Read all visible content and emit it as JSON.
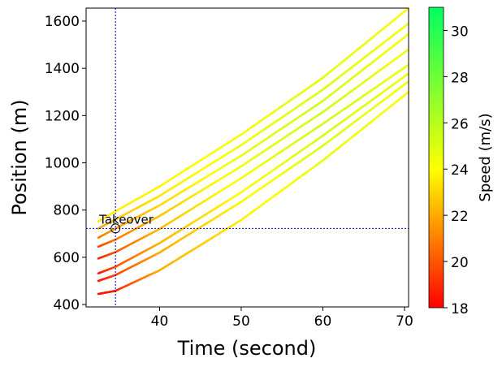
{
  "chart_data": {
    "type": "line",
    "xlabel": "Time (second)",
    "ylabel": "Position (m)",
    "xlim": [
      31,
      70.5
    ],
    "ylim": [
      390,
      1655
    ],
    "xticks": [
      40,
      50,
      60,
      70
    ],
    "yticks": [
      400,
      600,
      800,
      1000,
      1200,
      1400,
      1600
    ],
    "grid": false,
    "colorbar": {
      "label": "Speed (m/s)",
      "min": 18,
      "max": 31,
      "ticks": [
        18,
        20,
        22,
        24,
        26,
        28,
        30
      ],
      "colors": [
        "#ff0000",
        "#ffff00",
        "#00ff60"
      ]
    },
    "reference_lines": {
      "x": 34.6,
      "y": 722
    },
    "annotation": {
      "text": "Takeover",
      "x": 34.6,
      "y": 722
    },
    "series": [
      {
        "points": [
          [
            32.5,
            752
          ],
          [
            34.6,
            795
          ],
          [
            40,
            900
          ],
          [
            50,
            1120
          ],
          [
            60,
            1360
          ],
          [
            70.5,
            1655
          ]
        ],
        "speed": [
          23.5,
          23.6,
          23.8,
          24.2,
          24.8,
          24.2
        ]
      },
      {
        "points": [
          [
            32.5,
            722
          ],
          [
            34.6,
            760
          ],
          [
            40,
            860
          ],
          [
            50,
            1075
          ],
          [
            60,
            1310
          ],
          [
            70.5,
            1590
          ]
        ],
        "speed": [
          21.8,
          22.6,
          23.4,
          24.4,
          25.0,
          24.2
        ]
      },
      {
        "points": [
          [
            32.5,
            683
          ],
          [
            34.6,
            722
          ],
          [
            40,
            820
          ],
          [
            50,
            1030
          ],
          [
            60,
            1262
          ],
          [
            70.5,
            1545
          ]
        ],
        "speed": [
          20.8,
          21.8,
          23.0,
          24.6,
          25.4,
          24.0
        ]
      },
      {
        "points": [
          [
            32.5,
            645
          ],
          [
            34.6,
            675
          ],
          [
            40,
            775
          ],
          [
            50,
            985
          ],
          [
            60,
            1215
          ],
          [
            70.5,
            1480
          ]
        ],
        "speed": [
          19.5,
          20.8,
          22.6,
          24.4,
          25.4,
          24.2
        ]
      },
      {
        "points": [
          [
            32.5,
            595
          ],
          [
            34.6,
            622
          ],
          [
            40,
            720
          ],
          [
            50,
            935
          ],
          [
            60,
            1165
          ],
          [
            70.5,
            1415
          ]
        ],
        "speed": [
          18.8,
          20.0,
          22.4,
          24.2,
          25.4,
          24.4
        ]
      },
      {
        "points": [
          [
            32.5,
            532
          ],
          [
            34.6,
            560
          ],
          [
            40,
            660
          ],
          [
            50,
            875
          ],
          [
            60,
            1115
          ],
          [
            70.5,
            1378
          ]
        ],
        "speed": [
          18.5,
          19.8,
          22.2,
          24.0,
          25.2,
          24.4
        ]
      },
      {
        "points": [
          [
            32.5,
            500
          ],
          [
            34.6,
            525
          ],
          [
            40,
            620
          ],
          [
            50,
            835
          ],
          [
            60,
            1072
          ],
          [
            70.5,
            1345
          ]
        ],
        "speed": [
          18.5,
          19.6,
          22.0,
          23.8,
          25.0,
          24.2
        ]
      },
      {
        "points": [
          [
            32.5,
            445
          ],
          [
            34.6,
            458
          ],
          [
            40,
            545
          ],
          [
            50,
            758
          ],
          [
            60,
            1010
          ],
          [
            70.5,
            1300
          ]
        ],
        "speed": [
          18.3,
          18.8,
          22.0,
          23.6,
          24.6,
          24.0
        ]
      }
    ]
  }
}
